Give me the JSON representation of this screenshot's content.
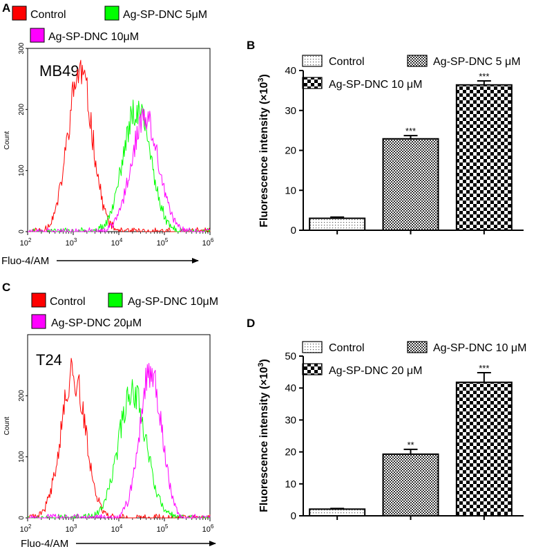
{
  "panels": {
    "A": {
      "letter": "A"
    },
    "B": {
      "letter": "B"
    },
    "C": {
      "letter": "C"
    },
    "D": {
      "letter": "D"
    }
  },
  "colors": {
    "red": "#ff0000",
    "green": "#00ff00",
    "magenta": "#ff00ff",
    "black": "#000000"
  },
  "chart_data": [
    {
      "id": "A",
      "type": "line",
      "title": "MB49",
      "xlabel": "Fluo-4/AM",
      "ylabel": "Count",
      "x_scale": "log",
      "xlim": [
        100,
        1000000
      ],
      "ylim": [
        0,
        300
      ],
      "y_ticks": [
        0,
        100,
        200,
        300
      ],
      "x_tick_labels": [
        {
          "base": "10",
          "exp": "2"
        },
        {
          "base": "10",
          "exp": "3"
        },
        {
          "base": "10",
          "exp": "4"
        },
        {
          "base": "10",
          "exp": "5"
        },
        {
          "base": "10",
          "exp": "6"
        }
      ],
      "legend_placement": "top",
      "series": [
        {
          "name": "Control",
          "color": "#ff0000",
          "peak_log": 3.15,
          "sigma": 0.27,
          "peak_count": 262,
          "seed": 11
        },
        {
          "name": "Ag-SP-DNC 5μM",
          "color": "#00ff00",
          "peak_log": 4.4,
          "sigma": 0.3,
          "peak_count": 203,
          "seed": 23
        },
        {
          "name": "Ag-SP-DNC 10μM",
          "color": "#ff00ff",
          "peak_log": 4.57,
          "sigma": 0.3,
          "peak_count": 185,
          "seed": 37
        }
      ]
    },
    {
      "id": "B",
      "type": "bar",
      "ylabel_main": "Fluorescence intensity (×10",
      "ylabel_sup": "3",
      "ylabel_end": ")",
      "ylim": [
        0,
        40
      ],
      "y_ticks": [
        0,
        10,
        20,
        30,
        40
      ],
      "legend_placement": "top",
      "series": [
        {
          "name": "Control",
          "value": 3.0,
          "error": 0.3,
          "pattern": "dots",
          "sig": ""
        },
        {
          "name": "Ag-SP-DNC 5 μM",
          "value": 22.9,
          "error": 0.8,
          "pattern": "crosshatch",
          "sig": "***"
        },
        {
          "name": "Ag-SP-DNC 10 μM",
          "value": 36.4,
          "error": 1.0,
          "pattern": "checker",
          "sig": "***"
        }
      ]
    },
    {
      "id": "C",
      "type": "line",
      "title": "T24",
      "xlabel": "Fluo-4/AM",
      "ylabel": "Count",
      "x_scale": "log",
      "xlim": [
        100,
        1000000
      ],
      "ylim": [
        0,
        300
      ],
      "y_ticks": [
        0,
        100,
        200
      ],
      "x_tick_labels": [
        {
          "base": "10",
          "exp": "2"
        },
        {
          "base": "10",
          "exp": "3"
        },
        {
          "base": "10",
          "exp": "4"
        },
        {
          "base": "10",
          "exp": "5"
        },
        {
          "base": "10",
          "exp": "6"
        }
      ],
      "legend_placement": "top",
      "series": [
        {
          "name": "Control",
          "color": "#ff0000",
          "peak_log": 3.0,
          "sigma": 0.27,
          "peak_count": 235,
          "seed": 41
        },
        {
          "name": "Ag-SP-DNC 10μM",
          "color": "#00ff00",
          "peak_log": 4.3,
          "sigma": 0.3,
          "peak_count": 210,
          "seed": 53
        },
        {
          "name": "Ag-SP-DNC 20μM",
          "color": "#ff00ff",
          "peak_log": 4.7,
          "sigma": 0.24,
          "peak_count": 245,
          "seed": 67
        }
      ]
    },
    {
      "id": "D",
      "type": "bar",
      "ylabel_main": "Fluorescence intensity (×10",
      "ylabel_sup": "3",
      "ylabel_end": ")",
      "ylim": [
        0,
        50
      ],
      "y_ticks": [
        0,
        10,
        20,
        30,
        40,
        50
      ],
      "legend_placement": "top",
      "series": [
        {
          "name": "Control",
          "value": 2.1,
          "error": 0.2,
          "pattern": "dots",
          "sig": ""
        },
        {
          "name": "Ag-SP-DNC 10 μM",
          "value": 19.3,
          "error": 1.5,
          "pattern": "crosshatch",
          "sig": "**"
        },
        {
          "name": "Ag-SP-DNC 20 μM",
          "value": 41.8,
          "error": 3.0,
          "pattern": "checker",
          "sig": "***"
        }
      ]
    }
  ]
}
